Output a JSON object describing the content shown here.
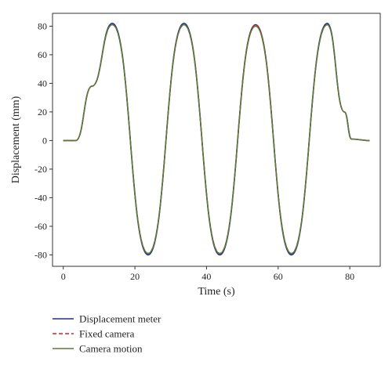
{
  "chart_data": {
    "type": "line",
    "title": "",
    "xlabel": "Time (s)",
    "ylabel": "Displacement (mm)",
    "xlim": [
      -3,
      88.5
    ],
    "ylim": [
      -88,
      89
    ],
    "xticks": [
      0,
      20,
      40,
      60,
      80
    ],
    "yticks": [
      -80,
      -60,
      -40,
      -20,
      0,
      20,
      40,
      60,
      80
    ],
    "grid": false,
    "legend_position": "bottom-left, below plot",
    "series": [
      {
        "name": "Displacement meter",
        "color": "#1f2f8f",
        "style": "solid",
        "x": [
          0,
          3.5,
          8,
          13.7,
          23.7,
          33.7,
          43.7,
          53.7,
          63.7,
          73.7,
          78.5,
          80.5,
          85.5
        ],
        "y": [
          0,
          0,
          38,
          82,
          -80,
          82,
          -80,
          81,
          -80,
          82,
          20,
          1,
          0
        ]
      },
      {
        "name": "Fixed camera",
        "color": "#d81b2a",
        "style": "dashed",
        "x": [
          0,
          3.5,
          8,
          13.7,
          23.7,
          33.7,
          43.7,
          53.7,
          63.7,
          73.7,
          78.5,
          80.5,
          85.5
        ],
        "y": [
          0,
          0,
          38,
          81,
          -79,
          81,
          -79,
          81,
          -79,
          81,
          20,
          1,
          0
        ]
      },
      {
        "name": "Camera motion",
        "color": "#5a7a3a",
        "style": "solid",
        "x": [
          0,
          3.5,
          8,
          13.7,
          23.7,
          33.7,
          43.7,
          53.7,
          63.7,
          73.7,
          78.5,
          80.5,
          85.5
        ],
        "y": [
          0,
          0,
          38,
          81,
          -79,
          81,
          -79,
          80,
          -79,
          81,
          20,
          1,
          0
        ]
      }
    ]
  }
}
